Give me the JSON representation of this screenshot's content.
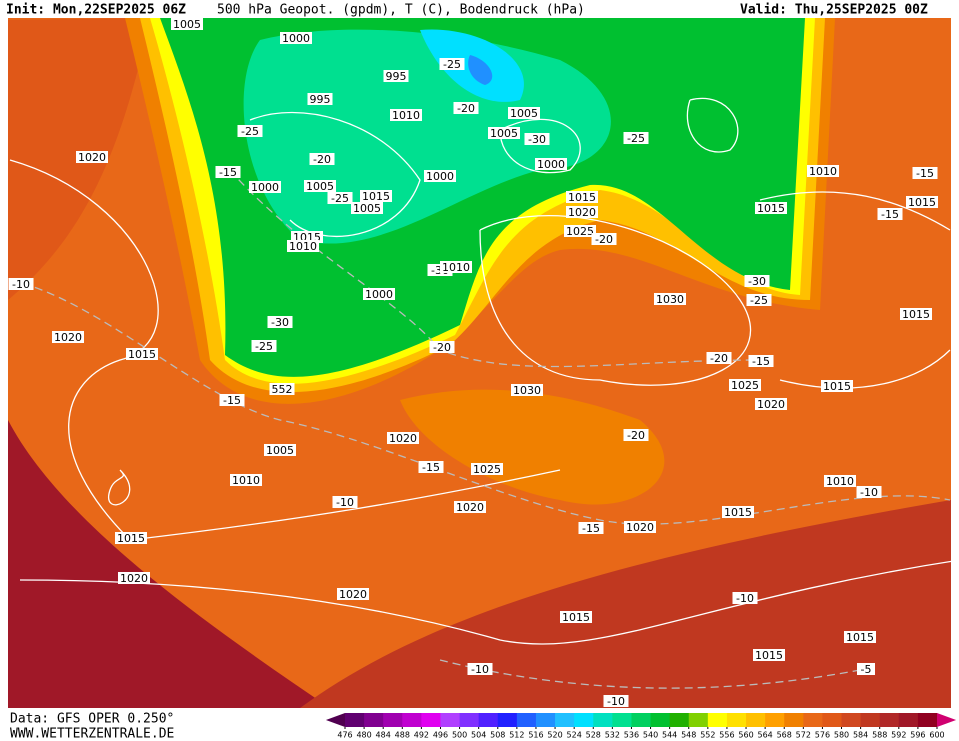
{
  "header": {
    "init": "Init: Mon,22SEP2025 06Z",
    "title": "500 hPa Geopot. (gpdm), T (C), Bodendruck (hPa)",
    "valid": "Valid: Thu,25SEP2025 00Z"
  },
  "footer": {
    "data": "Data: GFS OPER 0.250°",
    "site": "WWW.WETTERZENTRALE.DE"
  },
  "contour_labels": [
    1005,
    1000,
    995,
    -25,
    995,
    -25,
    1010,
    -20,
    1005,
    1005,
    -30,
    -25,
    1020,
    -20,
    1000,
    -15,
    1000,
    1005,
    1000,
    1015,
    1005,
    -25,
    1010,
    -15,
    1015,
    1020,
    1015,
    -15,
    1015,
    1015,
    1010,
    1025,
    -20,
    -30,
    1010,
    -10,
    -30,
    -25,
    1030,
    1000,
    1015,
    -30,
    1020,
    -25,
    -20,
    1015,
    -20,
    -15,
    1025,
    552,
    1030,
    1015,
    -15,
    1020,
    -20,
    1020,
    1005,
    -15,
    1025,
    1010,
    1010,
    -10,
    -10,
    1020,
    1015,
    -15,
    1020,
    1015,
    1020,
    1020,
    -10,
    1015,
    1015,
    1015,
    -10,
    -5,
    -10
  ],
  "colorbar": {
    "ticks": [
      476,
      480,
      484,
      488,
      492,
      496,
      500,
      504,
      508,
      512,
      516,
      520,
      524,
      528,
      532,
      536,
      540,
      544,
      548,
      552,
      556,
      560,
      564,
      568,
      572,
      576,
      580,
      584,
      588,
      592,
      596,
      600
    ],
    "colors": [
      "#500050",
      "#600070",
      "#800090",
      "#a000b0",
      "#c000d0",
      "#e000f0",
      "#b040ff",
      "#8030ff",
      "#5020ff",
      "#2020ff",
      "#2060ff",
      "#2090ff",
      "#20c0ff",
      "#00e0ff",
      "#00e0c0",
      "#00e090",
      "#00d060",
      "#00c030",
      "#20b000",
      "#80d000",
      "#ffff00",
      "#ffe000",
      "#ffc000",
      "#ffa000",
      "#f08000",
      "#e86818",
      "#e05818",
      "#d04820",
      "#c03820",
      "#b02828",
      "#a01828",
      "#900020",
      "#d00070"
    ]
  }
}
